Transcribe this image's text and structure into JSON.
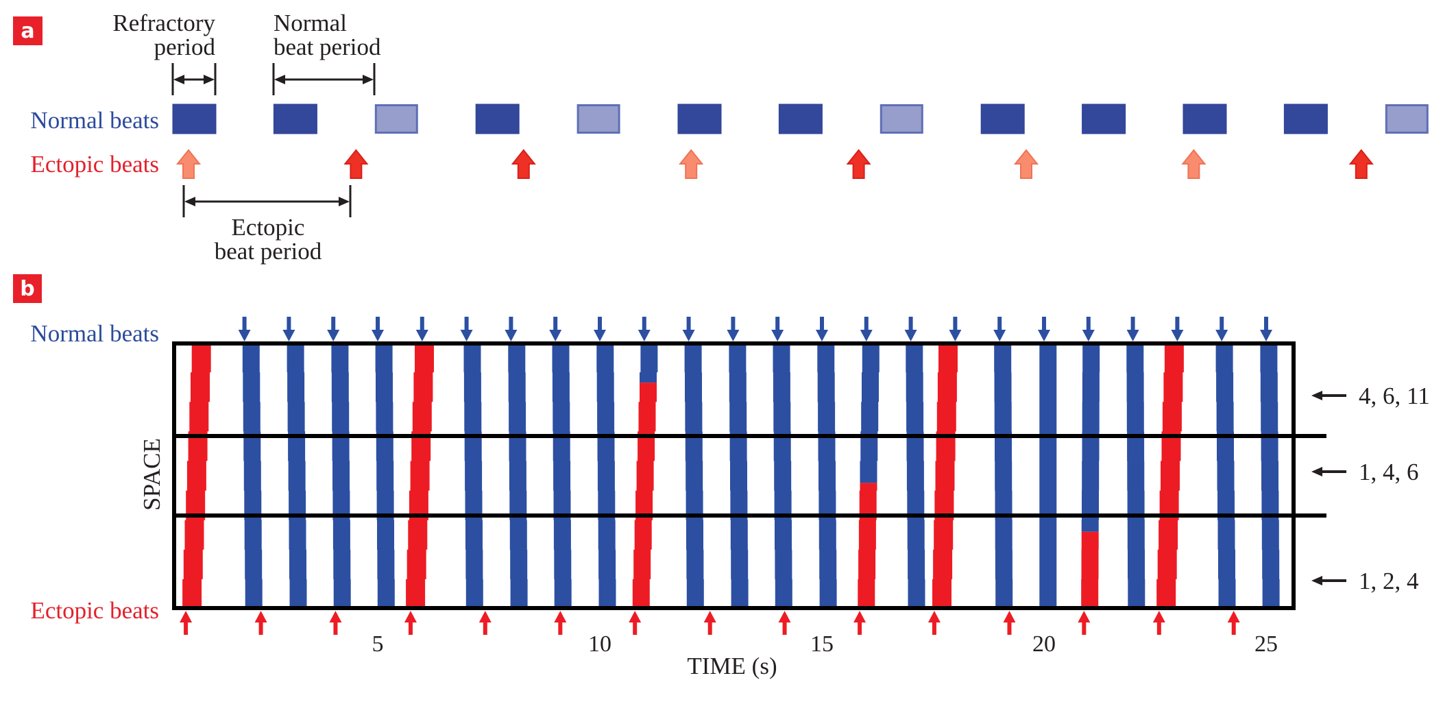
{
  "panel_a": {
    "label": "a",
    "refractory_label": [
      "Refractory",
      "period"
    ],
    "normal_period_label": [
      "Normal",
      "beat period"
    ],
    "ectopic_period_label": [
      "Ectopic",
      "beat period"
    ],
    "normal_beats_label": "Normal beats",
    "ectopic_beats_label": "Ectopic beats",
    "normal_beats": [
      "conducted",
      "conducted",
      "blocked",
      "conducted",
      "blocked",
      "conducted",
      "conducted",
      "blocked",
      "conducted",
      "conducted",
      "conducted",
      "conducted",
      "blocked"
    ],
    "ectopic_beats": [
      "blocked",
      "conducted",
      "conducted",
      "blocked",
      "conducted",
      "blocked",
      "blocked",
      "conducted"
    ]
  },
  "panel_b": {
    "label": "b",
    "normal_beats_label": "Normal beats",
    "ectopic_beats_label": "Ectopic beats",
    "row_labels": [
      "4, 6, 11",
      "1, 4, 6",
      "1, 2, 4"
    ]
  },
  "colors": {
    "panel_label_bg": "#e8202a",
    "normal_blue": "#2c4fa2",
    "normal_blue_light": "#979ecb",
    "normal_blue_light_border": "#5f6fb6",
    "normal_blue_square": "#33479b",
    "ectopic_red": "#ed1c24",
    "ectopic_red_arrow": "#ee3124",
    "ectopic_salmon": "#f98c6f",
    "ectopic_salmon_border": "#ef7355",
    "ink": "#231f20"
  },
  "chart_data": {
    "type": "space-time raster",
    "xlabel": "TIME (s)",
    "ylabel": "SPACE",
    "x_ticks": [
      5,
      10,
      15,
      20,
      25
    ],
    "xlim": [
      0.4,
      25.6
    ],
    "space_rows": 3,
    "grid": false,
    "normal_beat_times": [
      2,
      3,
      4,
      5,
      6,
      7,
      8,
      9,
      10,
      11,
      12,
      13,
      14,
      15,
      16,
      17,
      18,
      19,
      20,
      21,
      22,
      23,
      24,
      25
    ],
    "ectopic_beat_times": [
      0.68,
      2.37,
      4.05,
      5.74,
      7.42,
      9.11,
      10.79,
      12.48,
      14.16,
      15.85,
      17.53,
      19.22,
      20.9,
      22.59,
      24.27
    ],
    "wavefronts": [
      {
        "t_top": 1.03,
        "t_bottom": 0.82,
        "type": "ectopic"
      },
      {
        "t_top": 2.15,
        "t_bottom": 2.21,
        "type": "normal"
      },
      {
        "t_top": 3.15,
        "t_bottom": 3.21,
        "type": "normal"
      },
      {
        "t_top": 4.15,
        "t_bottom": 4.2,
        "type": "normal"
      },
      {
        "t_top": 5.14,
        "t_bottom": 5.19,
        "type": "normal"
      },
      {
        "t_top": 6.05,
        "t_bottom": 5.85,
        "type": "ectopic"
      },
      {
        "t_top": 7.13,
        "t_bottom": 7.18,
        "type": "normal"
      },
      {
        "t_top": 8.13,
        "t_bottom": 8.18,
        "type": "normal"
      },
      {
        "t_top": 9.12,
        "t_bottom": 9.17,
        "type": "normal"
      },
      {
        "t_top": 10.12,
        "t_bottom": 10.17,
        "type": "normal"
      },
      {
        "t_top": 11.11,
        "t_bottom": 10.93,
        "type": "mixed",
        "ectopic_from_space": 0.41
      },
      {
        "t_top": 12.1,
        "t_bottom": 12.15,
        "type": "normal"
      },
      {
        "t_top": 13.1,
        "t_bottom": 13.15,
        "type": "normal"
      },
      {
        "t_top": 14.09,
        "t_bottom": 14.14,
        "type": "normal"
      },
      {
        "t_top": 15.09,
        "t_bottom": 15.14,
        "type": "normal"
      },
      {
        "t_top": 16.1,
        "t_bottom": 16.0,
        "type": "mixed",
        "ectopic_from_space": 1.59
      },
      {
        "t_top": 17.08,
        "t_bottom": 17.13,
        "type": "normal"
      },
      {
        "t_top": 17.84,
        "t_bottom": 17.7,
        "type": "ectopic"
      },
      {
        "t_top": 19.07,
        "t_bottom": 19.1,
        "type": "normal"
      },
      {
        "t_top": 20.09,
        "t_bottom": 20.09,
        "type": "normal"
      },
      {
        "t_top": 21.06,
        "t_bottom": 21.03,
        "type": "mixed",
        "ectopic_from_space": 2.18
      },
      {
        "t_top": 22.05,
        "t_bottom": 22.08,
        "type": "normal"
      },
      {
        "t_top": 22.93,
        "t_bottom": 22.75,
        "type": "ectopic"
      },
      {
        "t_top": 24.06,
        "t_bottom": 24.12,
        "type": "normal"
      },
      {
        "t_top": 25.06,
        "t_bottom": 25.11,
        "type": "normal"
      }
    ]
  }
}
